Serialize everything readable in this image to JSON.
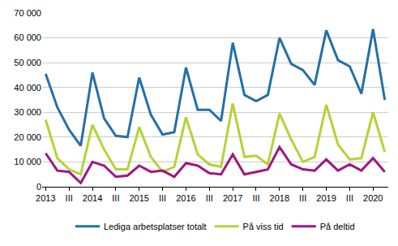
{
  "chart_data": {
    "type": "line",
    "categories": [
      "2013",
      null,
      "III",
      null,
      "2014",
      null,
      "III",
      null,
      "2015",
      null,
      "III",
      null,
      "2016",
      null,
      "III",
      null,
      "2017",
      null,
      "III",
      null,
      "2018",
      null,
      "III",
      null,
      "2019",
      null,
      "III",
      null,
      "2020",
      null
    ],
    "series": [
      {
        "name": "Lediga arbetsplatser totalt",
        "color": "#2470a8",
        "values": [
          45500,
          32000,
          23000,
          16500,
          46000,
          27500,
          20500,
          20000,
          44000,
          29000,
          21000,
          22000,
          48000,
          31000,
          31000,
          26500,
          58000,
          37000,
          34500,
          37000,
          60000,
          49500,
          47000,
          41000,
          63000,
          51000,
          48500,
          37500,
          63500,
          35000
        ]
      },
      {
        "name": "På viss tid",
        "color": "#b4d335",
        "values": [
          27000,
          11500,
          7000,
          5000,
          25000,
          15000,
          7000,
          7000,
          24000,
          12000,
          6000,
          8000,
          28000,
          13000,
          9000,
          8000,
          33500,
          12000,
          12500,
          9000,
          29500,
          19000,
          10000,
          12000,
          33000,
          17000,
          11000,
          11500,
          30000,
          14000
        ]
      },
      {
        "name": "På deltid",
        "color": "#a0177f",
        "values": [
          13500,
          6500,
          6000,
          1500,
          10000,
          8500,
          4000,
          4500,
          8500,
          6000,
          6500,
          4000,
          9500,
          8500,
          5500,
          5000,
          13000,
          5000,
          6000,
          7000,
          16000,
          9000,
          7000,
          6500,
          11000,
          6500,
          9000,
          6500,
          11500,
          6000
        ]
      }
    ],
    "ylim": [
      0,
      70000
    ],
    "yticks": [
      0,
      {
        "value": 10000,
        "label": "10 000"
      },
      {
        "value": 20000,
        "label": "20 000"
      },
      {
        "value": 30000,
        "label": "30 000"
      },
      {
        "value": 40000,
        "label": "40 000"
      },
      {
        "value": 50000,
        "label": "50 000"
      },
      {
        "value": 60000,
        "label": "60 000"
      },
      {
        "value": 70000,
        "label": "70 000"
      }
    ],
    "grid": true,
    "legend": "bottom"
  }
}
